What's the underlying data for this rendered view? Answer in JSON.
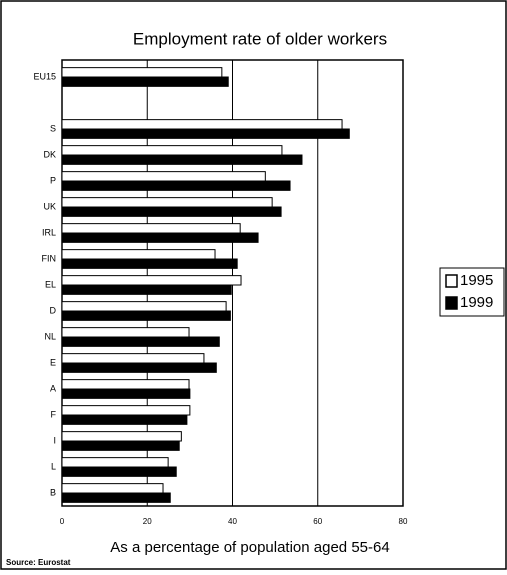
{
  "chart_data": {
    "type": "hbar",
    "title": "Employment rate of older workers",
    "x_label": "As a percentage of population aged 55-64",
    "source": "Source: Eurostat",
    "categories": [
      "EU15",
      null,
      "S",
      "DK",
      "P",
      "UK",
      "IRL",
      "FIN",
      "EL",
      "D",
      "NL",
      "E",
      "A",
      "F",
      "I",
      "L",
      "B"
    ],
    "series": [
      {
        "name": "1995",
        "color": "#ffffff",
        "values": [
          37.5,
          null,
          65.7,
          51.6,
          47.7,
          49.3,
          41.8,
          35.9,
          42,
          38.5,
          29.8,
          33.3,
          29.8,
          30,
          28,
          24.9,
          23.7
        ]
      },
      {
        "name": "1999",
        "color": "#000000",
        "values": [
          39,
          null,
          67.4,
          56.3,
          53.5,
          51.4,
          46,
          41.1,
          39.7,
          39.5,
          36.9,
          36.2,
          30,
          29.3,
          27.5,
          26.8,
          25.4
        ]
      }
    ],
    "xlim": [
      0,
      80
    ],
    "xticks": [
      0,
      20,
      40,
      60,
      80
    ],
    "grid": true,
    "legend": "right"
  }
}
